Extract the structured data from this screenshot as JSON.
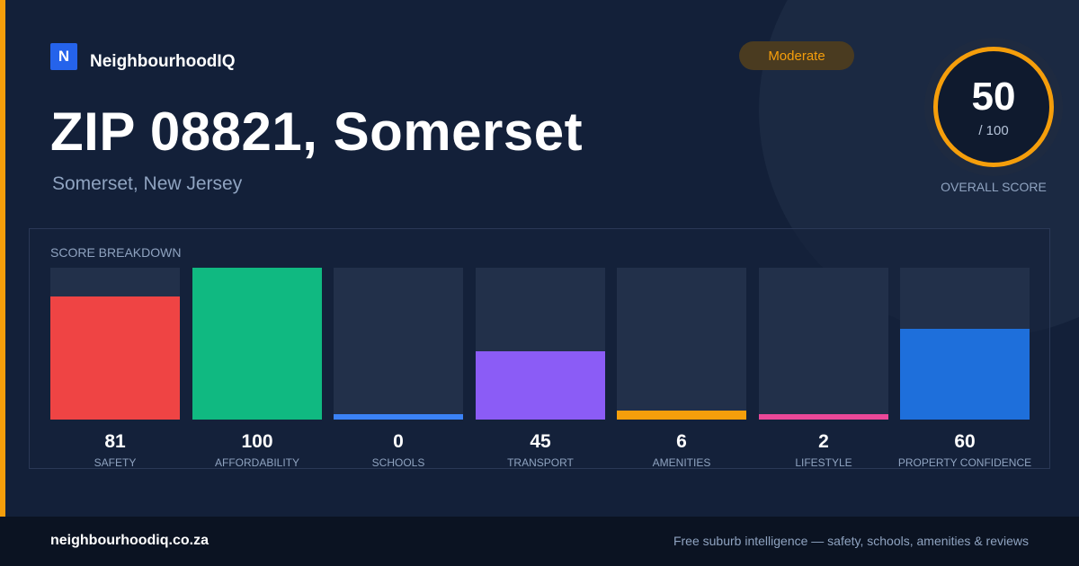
{
  "brand": {
    "logo_letter": "N",
    "name": "NeighbourhoodIQ",
    "brand_color": "#2563eb"
  },
  "header": {
    "title": "ZIP 08821, Somerset",
    "subtitle": "Somerset, New Jersey"
  },
  "badge": {
    "label": "Moderate",
    "color": "#f59e0b"
  },
  "score": {
    "value": "50",
    "max_label": "/ 100",
    "caption": "OVERALL SCORE"
  },
  "breakdown": {
    "title": "SCORE BREAKDOWN",
    "max": 100,
    "items": [
      {
        "label": "SAFETY",
        "value": 81,
        "color": "#ef4444"
      },
      {
        "label": "AFFORDABILITY",
        "value": 100,
        "color": "#10b981"
      },
      {
        "label": "SCHOOLS",
        "value": 0,
        "color": "#3b82f6"
      },
      {
        "label": "TRANSPORT",
        "value": 45,
        "color": "#8b5cf6"
      },
      {
        "label": "AMENITIES",
        "value": 6,
        "color": "#f59e0b"
      },
      {
        "label": "LIFESTYLE",
        "value": 2,
        "color": "#ec4899"
      },
      {
        "label": "PROPERTY CONFIDENCE",
        "value": 60,
        "color": "#1e6fdb"
      }
    ]
  },
  "footer": {
    "domain": "neighbourhoodiq.co.za",
    "tagline": "Free suburb intelligence — safety, schools, amenities & reviews"
  }
}
